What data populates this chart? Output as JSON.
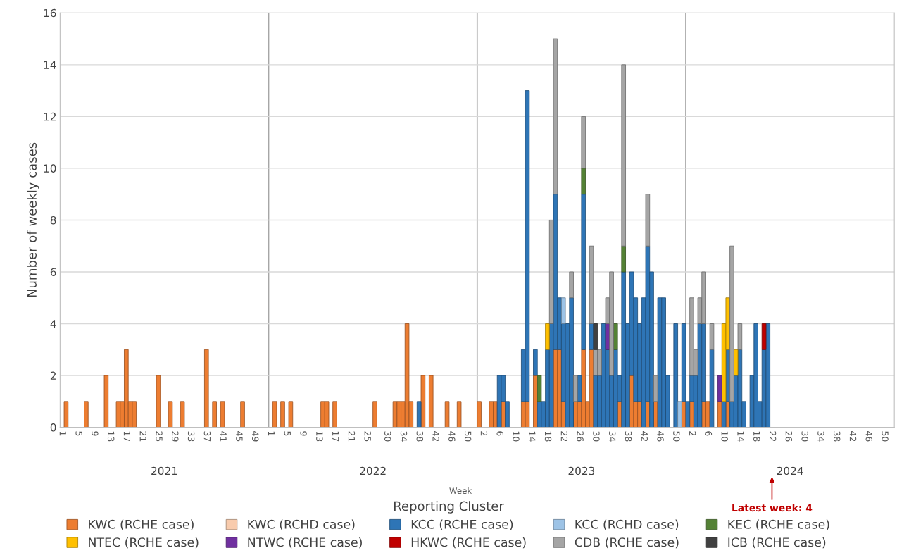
{
  "chart_data": {
    "type": "bar",
    "stacked": true,
    "ylabel": "Number of weekly cases",
    "legend_title": "Reporting Cluster",
    "ylim": [
      0,
      16
    ],
    "yticks": [
      0,
      2,
      4,
      6,
      8,
      10,
      12,
      14,
      16
    ],
    "categories": [
      "1",
      null,
      null,
      null,
      "5",
      null,
      null,
      null,
      "9",
      null,
      null,
      null,
      "13",
      null,
      null,
      null,
      "17",
      null,
      null,
      null,
      "21",
      null,
      null,
      null,
      "25",
      null,
      null,
      null,
      "29",
      null,
      null,
      null,
      "33",
      null,
      null,
      null,
      "37",
      null,
      null,
      null,
      "41",
      null,
      null,
      null,
      "45",
      null,
      null,
      null,
      "49",
      null,
      null,
      null,
      "1",
      null,
      null,
      null,
      "5",
      null,
      null,
      null,
      "9",
      null,
      null,
      null,
      "13",
      null,
      null,
      null,
      "17",
      null,
      null,
      null,
      "21",
      null,
      null,
      null,
      "25",
      null,
      null,
      null,
      null,
      "30",
      null,
      null,
      null,
      "34",
      null,
      null,
      null,
      "38",
      null,
      null,
      null,
      "42",
      null,
      null,
      null,
      "46",
      null,
      null,
      null,
      "50",
      null,
      null,
      null,
      "2",
      null,
      null,
      null,
      "6",
      null,
      null,
      null,
      "10",
      null,
      null,
      null,
      "14",
      null,
      null,
      null,
      "18",
      null,
      null,
      null,
      "22",
      null,
      null,
      null,
      "26",
      null,
      null,
      null,
      "30",
      null,
      null,
      null,
      "34",
      null,
      null,
      null,
      "38",
      null,
      null,
      null,
      "42",
      null,
      null,
      null,
      "46",
      null,
      null,
      null,
      "50",
      null,
      null,
      null,
      "2",
      null,
      null,
      null,
      "6",
      null,
      null,
      null,
      "10",
      null,
      null,
      null,
      "14",
      null,
      null,
      null,
      "18",
      null,
      null,
      null,
      "22",
      null,
      null,
      null,
      "26",
      null,
      null,
      null,
      "30",
      null,
      null,
      null,
      "34",
      null,
      null,
      null,
      "38",
      null,
      null,
      null,
      "42",
      null,
      null,
      null,
      "46",
      null,
      null,
      null,
      "50",
      null,
      null
    ],
    "annotations": [
      "2021",
      "2022",
      "2023",
      "2024",
      "Week",
      "Latest week: 4"
    ],
    "grid": "y",
    "legend": "bottom",
    "series": [
      {
        "name": "KWC (RCHE case)",
        "color": "#ed7d31",
        "values": [
          0,
          1,
          0,
          0,
          0,
          0,
          1,
          0,
          0,
          0,
          0,
          2,
          0,
          0,
          1,
          1,
          3,
          1,
          1,
          0,
          0,
          0,
          0,
          0,
          2,
          0,
          0,
          1,
          0,
          0,
          1,
          0,
          0,
          0,
          0,
          0,
          3,
          0,
          1,
          0,
          1,
          0,
          0,
          0,
          0,
          1,
          0,
          0,
          0,
          0,
          0,
          0,
          0,
          1,
          0,
          1,
          0,
          1,
          0,
          0,
          0,
          0,
          0,
          0,
          0,
          1,
          1,
          0,
          1,
          0,
          0,
          0,
          0,
          0,
          0,
          0,
          0,
          0,
          1,
          0,
          0,
          0,
          0,
          1,
          1,
          1,
          4,
          1,
          0,
          0,
          2,
          0,
          2,
          0,
          0,
          0,
          1,
          0,
          0,
          1,
          0,
          0,
          0,
          0,
          1,
          0,
          0,
          1,
          1,
          0,
          1,
          0,
          0,
          0,
          0,
          1,
          1,
          0,
          2,
          0,
          0,
          0,
          0,
          3,
          3,
          1,
          0,
          0,
          1,
          1,
          3,
          1,
          3,
          0,
          0,
          0,
          0,
          0,
          0,
          1,
          0,
          0,
          2,
          1,
          1,
          0,
          1,
          0,
          1,
          0,
          0,
          0,
          0,
          0,
          0,
          1,
          0,
          1,
          0,
          0,
          1,
          1,
          0,
          0,
          1,
          0,
          1,
          0,
          0,
          0,
          0,
          0,
          0,
          0,
          0,
          0,
          0,
          0,
          0,
          0,
          0,
          0,
          0,
          0,
          0,
          0,
          0,
          0,
          0,
          0,
          0,
          0,
          0,
          0,
          0,
          0,
          0,
          0,
          0,
          0,
          0,
          0,
          0,
          0,
          0,
          0,
          0,
          0
        ]
      },
      {
        "name": "KWC (RCHD case)",
        "color": "#f8cbad",
        "values": [
          0,
          0,
          0,
          0,
          0,
          0,
          0,
          0,
          0,
          0,
          0,
          0,
          0,
          0,
          0,
          0,
          0,
          0,
          0,
          0,
          0,
          0,
          0,
          0,
          0,
          0,
          0,
          0,
          0,
          0,
          0,
          0,
          0,
          0,
          0,
          0,
          0,
          0,
          0,
          0,
          0,
          0,
          0,
          0,
          0,
          0,
          0,
          0,
          0,
          0,
          0,
          0,
          0,
          0,
          0,
          0,
          0,
          0,
          0,
          0,
          0,
          0,
          0,
          0,
          0,
          0,
          0,
          0,
          0,
          0,
          0,
          0,
          0,
          0,
          0,
          0,
          0,
          0,
          0,
          0,
          0,
          0,
          0,
          0,
          0,
          0,
          0,
          0,
          0,
          0,
          0,
          0,
          0,
          0,
          0,
          0,
          0,
          0,
          0,
          0,
          0,
          0,
          0,
          0,
          0,
          0,
          0,
          0,
          0,
          0,
          0,
          0,
          0,
          0,
          0,
          0,
          0,
          0,
          0,
          0,
          0,
          0,
          0,
          0,
          0,
          0,
          0,
          0,
          0,
          0,
          0,
          0,
          0,
          0,
          0,
          0,
          0,
          0,
          0,
          0,
          0,
          0,
          0,
          0,
          0,
          0,
          0,
          0,
          0,
          0,
          0,
          0,
          0,
          0,
          0,
          0,
          0,
          0,
          0,
          0,
          0,
          0,
          0,
          0,
          0,
          0,
          0,
          0,
          0,
          0,
          0,
          0,
          0,
          0,
          0,
          0,
          0,
          0,
          0,
          0,
          0,
          0,
          0,
          0,
          0,
          0,
          0,
          0,
          0,
          0,
          0,
          0,
          0,
          0,
          0,
          0,
          0,
          0,
          0,
          0,
          0,
          0,
          0,
          0,
          0,
          0,
          0,
          0
        ]
      },
      {
        "name": "KCC (RCHE case)",
        "color": "#2e75b6",
        "values": [
          0,
          0,
          0,
          0,
          0,
          0,
          0,
          0,
          0,
          0,
          0,
          0,
          0,
          0,
          0,
          0,
          0,
          0,
          0,
          0,
          0,
          0,
          0,
          0,
          0,
          0,
          0,
          0,
          0,
          0,
          0,
          0,
          0,
          0,
          0,
          0,
          0,
          0,
          0,
          0,
          0,
          0,
          0,
          0,
          0,
          0,
          0,
          0,
          0,
          0,
          0,
          0,
          0,
          0,
          0,
          0,
          0,
          0,
          0,
          0,
          0,
          0,
          0,
          0,
          0,
          0,
          0,
          0,
          0,
          0,
          0,
          0,
          0,
          0,
          0,
          0,
          0,
          0,
          0,
          0,
          0,
          0,
          0,
          0,
          0,
          0,
          0,
          0,
          0,
          1,
          0,
          0,
          0,
          0,
          0,
          0,
          0,
          0,
          0,
          0,
          0,
          0,
          0,
          0,
          0,
          0,
          0,
          0,
          0,
          2,
          1,
          1,
          0,
          0,
          0,
          2,
          12,
          0,
          1,
          1,
          1,
          3,
          4,
          6,
          2,
          3,
          4,
          5,
          0,
          1,
          6,
          0,
          1,
          2,
          2,
          4,
          3,
          2,
          3,
          1,
          6,
          4,
          4,
          4,
          3,
          5,
          6,
          6,
          0,
          5,
          5,
          2,
          0,
          4,
          0,
          3,
          1,
          1,
          2,
          4,
          3,
          0,
          3,
          0,
          0,
          1,
          2,
          1,
          2,
          3,
          1,
          0,
          2,
          4,
          1,
          3,
          4,
          0,
          0,
          0,
          0,
          0,
          0,
          0,
          0,
          0,
          0,
          0,
          0,
          0,
          0,
          0,
          0,
          0,
          0,
          0,
          0,
          0,
          0,
          0,
          0,
          0,
          0,
          0,
          0,
          0,
          0,
          0
        ]
      },
      {
        "name": "KCC (RCHD case)",
        "color": "#9dc3e6",
        "values": [
          0,
          0,
          0,
          0,
          0,
          0,
          0,
          0,
          0,
          0,
          0,
          0,
          0,
          0,
          0,
          0,
          0,
          0,
          0,
          0,
          0,
          0,
          0,
          0,
          0,
          0,
          0,
          0,
          0,
          0,
          0,
          0,
          0,
          0,
          0,
          0,
          0,
          0,
          0,
          0,
          0,
          0,
          0,
          0,
          0,
          0,
          0,
          0,
          0,
          0,
          0,
          0,
          0,
          0,
          0,
          0,
          0,
          0,
          0,
          0,
          0,
          0,
          0,
          0,
          0,
          0,
          0,
          0,
          0,
          0,
          0,
          0,
          0,
          0,
          0,
          0,
          0,
          0,
          0,
          0,
          0,
          0,
          0,
          0,
          0,
          0,
          0,
          0,
          0,
          0,
          0,
          0,
          0,
          0,
          0,
          0,
          0,
          0,
          0,
          0,
          0,
          0,
          0,
          0,
          0,
          0,
          0,
          0,
          0,
          0,
          0,
          0,
          0,
          0,
          0,
          0,
          0,
          0,
          0,
          0,
          0,
          0,
          0,
          0,
          0,
          1,
          0,
          0,
          0,
          0,
          0,
          0,
          0,
          0,
          0,
          0,
          0,
          0,
          0,
          0,
          0,
          0,
          0,
          0,
          0,
          0,
          0,
          0,
          0,
          0,
          0,
          0,
          0,
          0,
          1,
          0,
          0,
          0,
          0,
          0,
          0,
          0,
          0,
          0,
          0,
          0,
          0,
          0,
          0,
          0,
          0,
          0,
          0,
          0,
          0,
          0,
          0,
          0,
          0,
          0,
          0,
          0,
          0,
          0,
          0,
          0,
          0,
          0,
          0,
          0,
          0,
          0,
          0,
          0,
          0,
          0,
          0,
          0,
          0,
          0,
          0,
          0,
          0,
          0,
          0,
          0,
          0,
          0
        ]
      },
      {
        "name": "KEC (RCHE case)",
        "color": "#548235",
        "values": [
          0,
          0,
          0,
          0,
          0,
          0,
          0,
          0,
          0,
          0,
          0,
          0,
          0,
          0,
          0,
          0,
          0,
          0,
          0,
          0,
          0,
          0,
          0,
          0,
          0,
          0,
          0,
          0,
          0,
          0,
          0,
          0,
          0,
          0,
          0,
          0,
          0,
          0,
          0,
          0,
          0,
          0,
          0,
          0,
          0,
          0,
          0,
          0,
          0,
          0,
          0,
          0,
          0,
          0,
          0,
          0,
          0,
          0,
          0,
          0,
          0,
          0,
          0,
          0,
          0,
          0,
          0,
          0,
          0,
          0,
          0,
          0,
          0,
          0,
          0,
          0,
          0,
          0,
          0,
          0,
          0,
          0,
          0,
          0,
          0,
          0,
          0,
          0,
          0,
          0,
          0,
          0,
          0,
          0,
          0,
          0,
          0,
          0,
          0,
          0,
          0,
          0,
          0,
          0,
          0,
          0,
          0,
          0,
          0,
          0,
          0,
          0,
          0,
          0,
          0,
          0,
          0,
          0,
          0,
          1,
          0,
          0,
          0,
          0,
          0,
          0,
          0,
          0,
          0,
          0,
          1,
          0,
          0,
          0,
          0,
          0,
          0,
          0,
          1,
          0,
          1,
          0,
          0,
          0,
          0,
          0,
          0,
          0,
          0,
          0,
          0,
          0,
          0,
          0,
          0,
          0,
          0,
          0,
          0,
          0,
          0,
          0,
          0,
          0,
          0,
          0,
          0,
          0,
          0,
          0,
          0,
          0,
          0,
          0,
          0,
          0,
          0,
          0,
          0,
          0,
          0,
          0,
          0,
          0,
          0,
          0,
          0,
          0,
          0,
          0,
          0,
          0,
          0,
          0,
          0,
          0,
          0,
          0,
          0,
          0,
          0,
          0,
          0,
          0,
          0,
          0,
          0,
          0
        ]
      },
      {
        "name": "NTEC (RCHE case)",
        "color": "#ffc000",
        "values": [
          0,
          0,
          0,
          0,
          0,
          0,
          0,
          0,
          0,
          0,
          0,
          0,
          0,
          0,
          0,
          0,
          0,
          0,
          0,
          0,
          0,
          0,
          0,
          0,
          0,
          0,
          0,
          0,
          0,
          0,
          0,
          0,
          0,
          0,
          0,
          0,
          0,
          0,
          0,
          0,
          0,
          0,
          0,
          0,
          0,
          0,
          0,
          0,
          0,
          0,
          0,
          0,
          0,
          0,
          0,
          0,
          0,
          0,
          0,
          0,
          0,
          0,
          0,
          0,
          0,
          0,
          0,
          0,
          0,
          0,
          0,
          0,
          0,
          0,
          0,
          0,
          0,
          0,
          0,
          0,
          0,
          0,
          0,
          0,
          0,
          0,
          0,
          0,
          0,
          0,
          0,
          0,
          0,
          0,
          0,
          0,
          0,
          0,
          0,
          0,
          0,
          0,
          0,
          0,
          0,
          0,
          0,
          0,
          0,
          0,
          0,
          0,
          0,
          0,
          0,
          0,
          0,
          0,
          0,
          0,
          0,
          1,
          0,
          0,
          0,
          0,
          0,
          0,
          0,
          0,
          0,
          0,
          0,
          0,
          0,
          0,
          0,
          0,
          0,
          0,
          0,
          0,
          0,
          0,
          0,
          0,
          0,
          0,
          0,
          0,
          0,
          0,
          0,
          0,
          0,
          0,
          0,
          0,
          0,
          0,
          0,
          0,
          0,
          0,
          0,
          3,
          2,
          0,
          1,
          0,
          0,
          0,
          0,
          0,
          0,
          0,
          0,
          0,
          0,
          0,
          0,
          0,
          0,
          0,
          0,
          0,
          0,
          0,
          0,
          0,
          0,
          0,
          0,
          0,
          0,
          0,
          0,
          0,
          0,
          0,
          0,
          0,
          0,
          0,
          0,
          0,
          0,
          0
        ]
      },
      {
        "name": "NTWC (RCHE case)",
        "color": "#7030a0",
        "values": [
          0,
          0,
          0,
          0,
          0,
          0,
          0,
          0,
          0,
          0,
          0,
          0,
          0,
          0,
          0,
          0,
          0,
          0,
          0,
          0,
          0,
          0,
          0,
          0,
          0,
          0,
          0,
          0,
          0,
          0,
          0,
          0,
          0,
          0,
          0,
          0,
          0,
          0,
          0,
          0,
          0,
          0,
          0,
          0,
          0,
          0,
          0,
          0,
          0,
          0,
          0,
          0,
          0,
          0,
          0,
          0,
          0,
          0,
          0,
          0,
          0,
          0,
          0,
          0,
          0,
          0,
          0,
          0,
          0,
          0,
          0,
          0,
          0,
          0,
          0,
          0,
          0,
          0,
          0,
          0,
          0,
          0,
          0,
          0,
          0,
          0,
          0,
          0,
          0,
          0,
          0,
          0,
          0,
          0,
          0,
          0,
          0,
          0,
          0,
          0,
          0,
          0,
          0,
          0,
          0,
          0,
          0,
          0,
          0,
          0,
          0,
          0,
          0,
          0,
          0,
          0,
          0,
          0,
          0,
          0,
          0,
          0,
          0,
          0,
          0,
          0,
          0,
          0,
          0,
          0,
          0,
          0,
          0,
          0,
          0,
          0,
          1,
          0,
          0,
          0,
          0,
          0,
          0,
          0,
          0,
          0,
          0,
          0,
          0,
          0,
          0,
          0,
          0,
          0,
          0,
          0,
          0,
          0,
          0,
          0,
          0,
          0,
          0,
          0,
          1,
          0,
          0,
          0,
          0,
          0,
          0,
          0,
          0,
          0,
          0,
          0,
          0,
          0,
          0,
          0,
          0,
          0,
          0,
          0,
          0,
          0,
          0,
          0,
          0,
          0,
          0,
          0,
          0,
          0,
          0,
          0,
          0,
          0,
          0,
          0,
          0,
          0,
          0,
          0,
          0,
          0,
          0,
          0
        ]
      },
      {
        "name": "HKWC (RCHE case)",
        "color": "#c00000",
        "values": [
          0,
          0,
          0,
          0,
          0,
          0,
          0,
          0,
          0,
          0,
          0,
          0,
          0,
          0,
          0,
          0,
          0,
          0,
          0,
          0,
          0,
          0,
          0,
          0,
          0,
          0,
          0,
          0,
          0,
          0,
          0,
          0,
          0,
          0,
          0,
          0,
          0,
          0,
          0,
          0,
          0,
          0,
          0,
          0,
          0,
          0,
          0,
          0,
          0,
          0,
          0,
          0,
          0,
          0,
          0,
          0,
          0,
          0,
          0,
          0,
          0,
          0,
          0,
          0,
          0,
          0,
          0,
          0,
          0,
          0,
          0,
          0,
          0,
          0,
          0,
          0,
          0,
          0,
          0,
          0,
          0,
          0,
          0,
          0,
          0,
          0,
          0,
          0,
          0,
          0,
          0,
          0,
          0,
          0,
          0,
          0,
          0,
          0,
          0,
          0,
          0,
          0,
          0,
          0,
          0,
          0,
          0,
          0,
          0,
          0,
          0,
          0,
          0,
          0,
          0,
          0,
          0,
          0,
          0,
          0,
          0,
          0,
          0,
          0,
          0,
          0,
          0,
          0,
          0,
          0,
          0,
          0,
          0,
          0,
          0,
          0,
          0,
          0,
          0,
          0,
          0,
          0,
          0,
          0,
          0,
          0,
          0,
          0,
          0,
          0,
          0,
          0,
          0,
          0,
          0,
          0,
          0,
          0,
          0,
          0,
          0,
          0,
          0,
          0,
          0,
          0,
          0,
          0,
          0,
          0,
          0,
          0,
          0,
          0,
          0,
          1,
          0,
          0,
          0,
          0,
          0,
          0,
          0,
          0,
          0,
          0,
          0,
          0,
          0,
          0,
          0,
          0,
          0,
          0,
          0,
          0,
          0,
          0,
          0,
          0,
          0,
          0,
          0,
          0,
          0,
          0,
          0,
          0
        ]
      },
      {
        "name": "CDB (RCHE case)",
        "color": "#a5a5a5",
        "values": [
          0,
          0,
          0,
          0,
          0,
          0,
          0,
          0,
          0,
          0,
          0,
          0,
          0,
          0,
          0,
          0,
          0,
          0,
          0,
          0,
          0,
          0,
          0,
          0,
          0,
          0,
          0,
          0,
          0,
          0,
          0,
          0,
          0,
          0,
          0,
          0,
          0,
          0,
          0,
          0,
          0,
          0,
          0,
          0,
          0,
          0,
          0,
          0,
          0,
          0,
          0,
          0,
          0,
          0,
          0,
          0,
          0,
          0,
          0,
          0,
          0,
          0,
          0,
          0,
          0,
          0,
          0,
          0,
          0,
          0,
          0,
          0,
          0,
          0,
          0,
          0,
          0,
          0,
          0,
          0,
          0,
          0,
          0,
          0,
          0,
          0,
          0,
          0,
          0,
          0,
          0,
          0,
          0,
          0,
          0,
          0,
          0,
          0,
          0,
          0,
          0,
          0,
          0,
          0,
          0,
          0,
          0,
          0,
          0,
          0,
          0,
          0,
          0,
          0,
          0,
          0,
          0,
          0,
          0,
          0,
          0,
          0,
          4,
          6,
          0,
          0,
          0,
          1,
          1,
          0,
          2,
          0,
          3,
          1,
          1,
          0,
          1,
          4,
          0,
          0,
          7,
          0,
          0,
          0,
          0,
          0,
          2,
          0,
          1,
          0,
          0,
          0,
          0,
          0,
          0,
          0,
          0,
          3,
          1,
          1,
          2,
          0,
          1,
          0,
          0,
          0,
          0,
          6,
          0,
          1,
          0,
          0,
          0,
          0,
          0,
          0,
          0,
          0,
          0,
          0,
          0,
          0,
          0,
          0,
          0,
          0,
          0,
          0,
          0,
          0,
          0,
          0,
          0,
          0,
          0,
          0,
          0,
          0,
          0,
          0,
          0,
          0,
          0,
          0,
          0,
          0,
          0,
          0
        ]
      },
      {
        "name": "ICB (RCHE case)",
        "color": "#404040",
        "values": [
          0,
          0,
          0,
          0,
          0,
          0,
          0,
          0,
          0,
          0,
          0,
          0,
          0,
          0,
          0,
          0,
          0,
          0,
          0,
          0,
          0,
          0,
          0,
          0,
          0,
          0,
          0,
          0,
          0,
          0,
          0,
          0,
          0,
          0,
          0,
          0,
          0,
          0,
          0,
          0,
          0,
          0,
          0,
          0,
          0,
          0,
          0,
          0,
          0,
          0,
          0,
          0,
          0,
          0,
          0,
          0,
          0,
          0,
          0,
          0,
          0,
          0,
          0,
          0,
          0,
          0,
          0,
          0,
          0,
          0,
          0,
          0,
          0,
          0,
          0,
          0,
          0,
          0,
          0,
          0,
          0,
          0,
          0,
          0,
          0,
          0,
          0,
          0,
          0,
          0,
          0,
          0,
          0,
          0,
          0,
          0,
          0,
          0,
          0,
          0,
          0,
          0,
          0,
          0,
          0,
          0,
          0,
          0,
          0,
          0,
          0,
          0,
          0,
          0,
          0,
          0,
          0,
          0,
          0,
          0,
          0,
          0,
          0,
          0,
          0,
          0,
          0,
          0,
          0,
          0,
          0,
          0,
          0,
          1,
          0,
          0,
          0,
          0,
          0,
          0,
          0,
          0,
          0,
          0,
          0,
          0,
          0,
          0,
          0,
          0,
          0,
          0,
          0,
          0,
          0,
          0,
          0,
          0,
          0,
          0,
          0,
          0,
          0,
          0,
          0,
          0,
          0,
          0,
          0,
          0,
          0,
          0,
          0,
          0,
          0,
          0,
          0,
          0,
          0,
          0,
          0,
          0,
          0,
          0,
          0,
          0,
          0,
          0,
          0,
          0,
          0,
          0,
          0,
          0,
          0,
          0,
          0,
          0,
          0,
          0,
          0,
          0,
          0,
          0,
          0,
          0,
          0,
          0
        ]
      }
    ]
  }
}
